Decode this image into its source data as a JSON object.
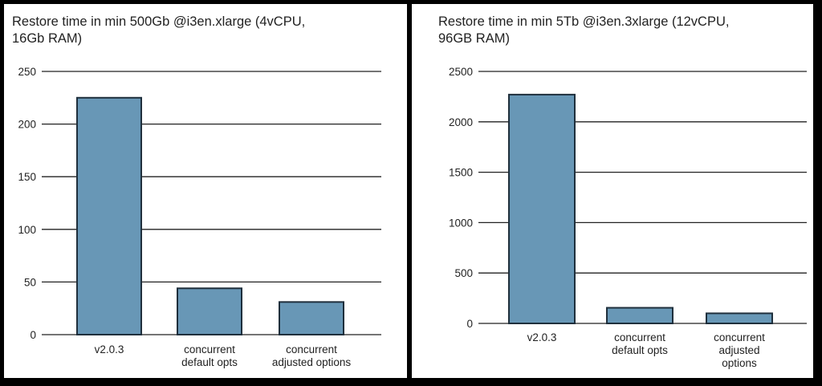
{
  "chart_data": [
    {
      "type": "bar",
      "title": "Restore time in min 500Gb @i3en.xlarge (4vCPU,\n16Gb RAM)",
      "categories": [
        "v2.0.3",
        "concurrent default opts",
        "concurrent adjusted options"
      ],
      "category_lines": [
        [
          "v2.0.3"
        ],
        [
          "concurrent",
          "default opts"
        ],
        [
          "concurrent",
          "adjusted options"
        ]
      ],
      "values": [
        225,
        44,
        31
      ],
      "ylim": [
        0,
        250
      ],
      "yticks": [
        0,
        50,
        100,
        150,
        200,
        250
      ],
      "grid": true,
      "bar_color": "#6897b6"
    },
    {
      "type": "bar",
      "title": "Restore time in min 5Tb @i3en.3xlarge (12vCPU,\n96GB RAM)",
      "categories": [
        "v2.0.3",
        "concurrent default opts",
        "concurrent adjusted options"
      ],
      "category_lines": [
        [
          "v2.0.3"
        ],
        [
          "concurrent",
          "default opts"
        ],
        [
          "concurrent",
          "adjusted",
          "options"
        ]
      ],
      "values": [
        2270,
        155,
        100
      ],
      "ylim": [
        0,
        2500
      ],
      "yticks": [
        0,
        500,
        1000,
        1500,
        2000,
        2500
      ],
      "grid": true,
      "bar_color": "#6897b6"
    }
  ]
}
